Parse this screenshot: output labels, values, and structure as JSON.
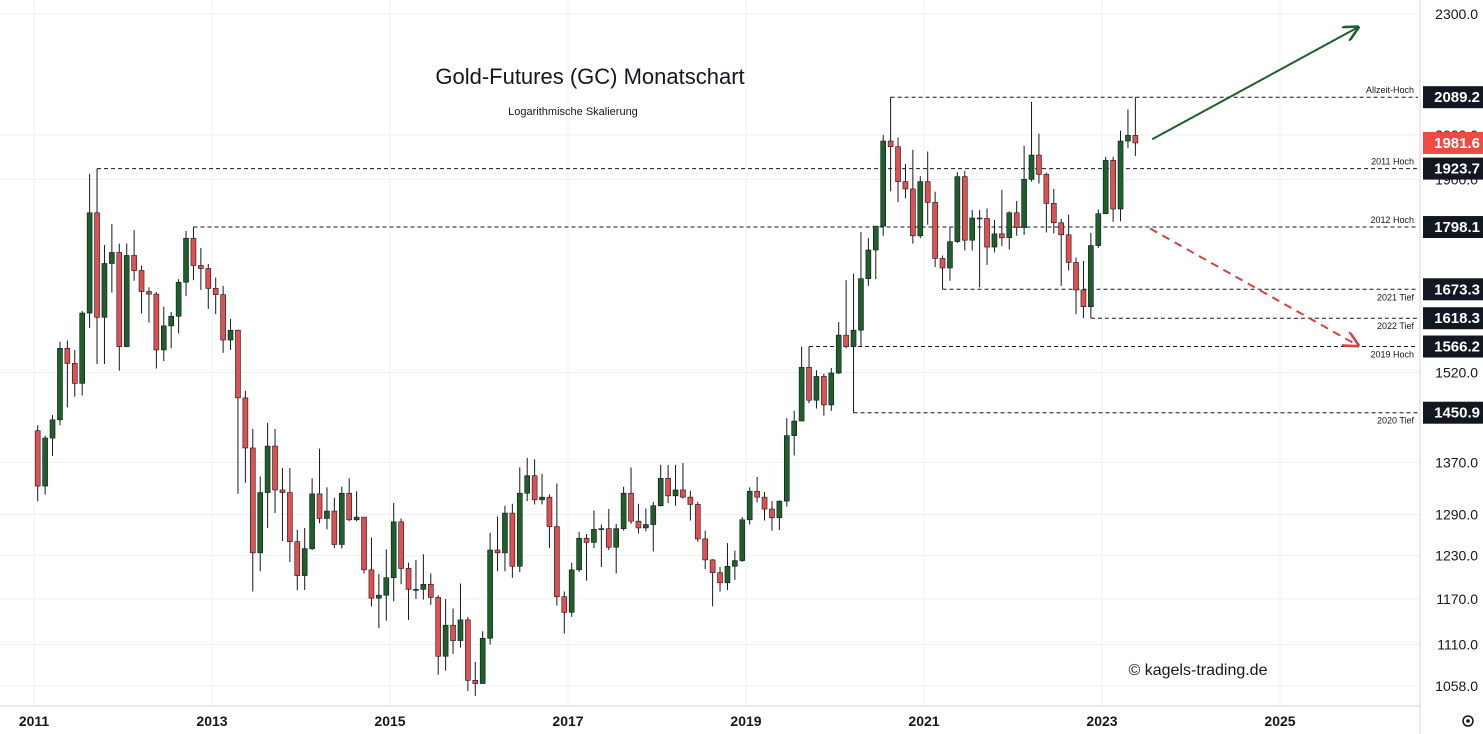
{
  "chart_data": {
    "type": "candlestick",
    "title": "Gold-Futures (GC) Monatschart",
    "subtitle": "Logarithmische Skalierung",
    "y_scale": "log",
    "ylim": [
      1015,
      2370
    ],
    "grid": true,
    "y_ticks": [
      "2300.0",
      "2000.0",
      "1900.0",
      "1520.0",
      "1370.0",
      "1290.0",
      "1230.0",
      "1170.0",
      "1110.0",
      "1058.0"
    ],
    "x_ticks": [
      "2011",
      "2013",
      "2015",
      "2017",
      "2019",
      "2021",
      "2023",
      "2025"
    ],
    "levels": [
      {
        "value": 2089.2,
        "label": "Allzeit-Hoch",
        "start": "2020-08"
      },
      {
        "value": 1923.7,
        "label": "2011 Hoch",
        "start": "2011-09"
      },
      {
        "value": 1798.1,
        "label": "2012 Hoch",
        "start": "2012-10"
      },
      {
        "value": 1673.3,
        "label": "2021 Tief",
        "start": "2021-03"
      },
      {
        "value": 1618.3,
        "label": "2022 Tief",
        "start": "2022-11"
      },
      {
        "value": 1566.2,
        "label": "2019 Hoch",
        "start": "2019-09"
      },
      {
        "value": 1450.9,
        "label": "2020 Tief",
        "start": "2020-03"
      }
    ],
    "current_price": "1981.6",
    "colors": {
      "up": "#1e5f2a",
      "down": "#e05050",
      "current": "#f04a45",
      "arrow_up": "#1e5f2a",
      "arrow_down": "#d94040"
    },
    "candles": [
      {
        "date": "2011-01",
        "o": 1421,
        "h": 1430,
        "l": 1310,
        "c": 1333
      },
      {
        "date": "2011-02",
        "o": 1333,
        "h": 1413,
        "l": 1320,
        "c": 1409
      },
      {
        "date": "2011-03",
        "o": 1409,
        "h": 1447,
        "l": 1380,
        "c": 1439
      },
      {
        "date": "2011-04",
        "o": 1439,
        "h": 1575,
        "l": 1430,
        "c": 1563
      },
      {
        "date": "2011-05",
        "o": 1563,
        "h": 1577,
        "l": 1460,
        "c": 1536
      },
      {
        "date": "2011-06",
        "o": 1536,
        "h": 1560,
        "l": 1478,
        "c": 1501
      },
      {
        "date": "2011-07",
        "o": 1501,
        "h": 1632,
        "l": 1480,
        "c": 1628
      },
      {
        "date": "2011-08",
        "o": 1628,
        "h": 1912,
        "l": 1600,
        "c": 1828
      },
      {
        "date": "2011-09",
        "o": 1828,
        "h": 1923.7,
        "l": 1535,
        "c": 1620
      },
      {
        "date": "2011-10",
        "o": 1620,
        "h": 1761,
        "l": 1535,
        "c": 1724
      },
      {
        "date": "2011-11",
        "o": 1724,
        "h": 1804,
        "l": 1667,
        "c": 1746
      },
      {
        "date": "2011-12",
        "o": 1746,
        "h": 1764,
        "l": 1523,
        "c": 1566
      },
      {
        "date": "2012-01",
        "o": 1566,
        "h": 1764,
        "l": 1565,
        "c": 1740
      },
      {
        "date": "2012-02",
        "o": 1740,
        "h": 1792,
        "l": 1690,
        "c": 1710
      },
      {
        "date": "2012-03",
        "o": 1710,
        "h": 1720,
        "l": 1627,
        "c": 1669
      },
      {
        "date": "2012-04",
        "o": 1669,
        "h": 1677,
        "l": 1610,
        "c": 1664
      },
      {
        "date": "2012-05",
        "o": 1664,
        "h": 1668,
        "l": 1527,
        "c": 1560
      },
      {
        "date": "2012-06",
        "o": 1560,
        "h": 1640,
        "l": 1540,
        "c": 1604
      },
      {
        "date": "2012-07",
        "o": 1604,
        "h": 1630,
        "l": 1563,
        "c": 1622
      },
      {
        "date": "2012-08",
        "o": 1622,
        "h": 1693,
        "l": 1590,
        "c": 1687
      },
      {
        "date": "2012-09",
        "o": 1687,
        "h": 1790,
        "l": 1660,
        "c": 1775
      },
      {
        "date": "2012-10",
        "o": 1775,
        "h": 1798.1,
        "l": 1691,
        "c": 1720
      },
      {
        "date": "2012-11",
        "o": 1720,
        "h": 1755,
        "l": 1672,
        "c": 1714
      },
      {
        "date": "2012-12",
        "o": 1714,
        "h": 1723,
        "l": 1636,
        "c": 1675
      },
      {
        "date": "2013-01",
        "o": 1675,
        "h": 1696,
        "l": 1626,
        "c": 1663
      },
      {
        "date": "2013-02",
        "o": 1663,
        "h": 1680,
        "l": 1555,
        "c": 1578
      },
      {
        "date": "2013-03",
        "o": 1578,
        "h": 1617,
        "l": 1560,
        "c": 1596
      },
      {
        "date": "2013-04",
        "o": 1596,
        "h": 1597,
        "l": 1321,
        "c": 1476
      },
      {
        "date": "2013-05",
        "o": 1476,
        "h": 1488,
        "l": 1338,
        "c": 1393
      },
      {
        "date": "2013-06",
        "o": 1393,
        "h": 1424,
        "l": 1180,
        "c": 1234
      },
      {
        "date": "2013-07",
        "o": 1234,
        "h": 1348,
        "l": 1208,
        "c": 1323
      },
      {
        "date": "2013-08",
        "o": 1323,
        "h": 1434,
        "l": 1270,
        "c": 1396
      },
      {
        "date": "2013-09",
        "o": 1396,
        "h": 1424,
        "l": 1292,
        "c": 1327
      },
      {
        "date": "2013-10",
        "o": 1327,
        "h": 1361,
        "l": 1251,
        "c": 1323
      },
      {
        "date": "2013-11",
        "o": 1323,
        "h": 1361,
        "l": 1221,
        "c": 1250
      },
      {
        "date": "2013-12",
        "o": 1250,
        "h": 1267,
        "l": 1182,
        "c": 1202
      },
      {
        "date": "2014-01",
        "o": 1202,
        "h": 1270,
        "l": 1182,
        "c": 1240
      },
      {
        "date": "2014-02",
        "o": 1240,
        "h": 1345,
        "l": 1238,
        "c": 1321
      },
      {
        "date": "2014-03",
        "o": 1321,
        "h": 1392,
        "l": 1277,
        "c": 1284
      },
      {
        "date": "2014-04",
        "o": 1284,
        "h": 1331,
        "l": 1268,
        "c": 1295
      },
      {
        "date": "2014-05",
        "o": 1295,
        "h": 1315,
        "l": 1241,
        "c": 1246
      },
      {
        "date": "2014-06",
        "o": 1246,
        "h": 1332,
        "l": 1240,
        "c": 1322
      },
      {
        "date": "2014-07",
        "o": 1322,
        "h": 1345,
        "l": 1280,
        "c": 1282
      },
      {
        "date": "2014-08",
        "o": 1282,
        "h": 1325,
        "l": 1280,
        "c": 1286
      },
      {
        "date": "2014-09",
        "o": 1286,
        "h": 1286,
        "l": 1205,
        "c": 1210
      },
      {
        "date": "2014-10",
        "o": 1210,
        "h": 1256,
        "l": 1160,
        "c": 1171
      },
      {
        "date": "2014-11",
        "o": 1171,
        "h": 1204,
        "l": 1131,
        "c": 1175
      },
      {
        "date": "2014-12",
        "o": 1175,
        "h": 1239,
        "l": 1141,
        "c": 1199
      },
      {
        "date": "2015-01",
        "o": 1199,
        "h": 1307,
        "l": 1167,
        "c": 1279
      },
      {
        "date": "2015-02",
        "o": 1279,
        "h": 1284,
        "l": 1190,
        "c": 1212
      },
      {
        "date": "2015-03",
        "o": 1212,
        "h": 1220,
        "l": 1142,
        "c": 1183
      },
      {
        "date": "2015-04",
        "o": 1183,
        "h": 1224,
        "l": 1170,
        "c": 1183
      },
      {
        "date": "2015-05",
        "o": 1183,
        "h": 1232,
        "l": 1169,
        "c": 1190
      },
      {
        "date": "2015-06",
        "o": 1190,
        "h": 1205,
        "l": 1162,
        "c": 1172
      },
      {
        "date": "2015-07",
        "o": 1172,
        "h": 1175,
        "l": 1072,
        "c": 1095
      },
      {
        "date": "2015-08",
        "o": 1095,
        "h": 1170,
        "l": 1077,
        "c": 1135
      },
      {
        "date": "2015-09",
        "o": 1135,
        "h": 1157,
        "l": 1098,
        "c": 1115
      },
      {
        "date": "2015-10",
        "o": 1115,
        "h": 1191,
        "l": 1106,
        "c": 1142
      },
      {
        "date": "2015-11",
        "o": 1142,
        "h": 1146,
        "l": 1052,
        "c": 1065
      },
      {
        "date": "2015-12",
        "o": 1065,
        "h": 1088,
        "l": 1046,
        "c": 1061
      },
      {
        "date": "2016-01",
        "o": 1061,
        "h": 1127,
        "l": 1061,
        "c": 1118
      },
      {
        "date": "2016-02",
        "o": 1118,
        "h": 1263,
        "l": 1110,
        "c": 1238
      },
      {
        "date": "2016-03",
        "o": 1238,
        "h": 1287,
        "l": 1208,
        "c": 1234
      },
      {
        "date": "2016-04",
        "o": 1234,
        "h": 1303,
        "l": 1208,
        "c": 1292
      },
      {
        "date": "2016-05",
        "o": 1292,
        "h": 1306,
        "l": 1199,
        "c": 1215
      },
      {
        "date": "2016-06",
        "o": 1215,
        "h": 1362,
        "l": 1207,
        "c": 1322
      },
      {
        "date": "2016-07",
        "o": 1322,
        "h": 1377,
        "l": 1310,
        "c": 1349
      },
      {
        "date": "2016-08",
        "o": 1349,
        "h": 1375,
        "l": 1305,
        "c": 1312
      },
      {
        "date": "2016-09",
        "o": 1312,
        "h": 1352,
        "l": 1305,
        "c": 1316
      },
      {
        "date": "2016-10",
        "o": 1316,
        "h": 1320,
        "l": 1241,
        "c": 1272
      },
      {
        "date": "2016-11",
        "o": 1272,
        "h": 1337,
        "l": 1161,
        "c": 1173
      },
      {
        "date": "2016-12",
        "o": 1173,
        "h": 1180,
        "l": 1124,
        "c": 1152
      },
      {
        "date": "2017-01",
        "o": 1152,
        "h": 1220,
        "l": 1146,
        "c": 1210
      },
      {
        "date": "2017-02",
        "o": 1210,
        "h": 1264,
        "l": 1207,
        "c": 1255
      },
      {
        "date": "2017-03",
        "o": 1255,
        "h": 1261,
        "l": 1195,
        "c": 1249
      },
      {
        "date": "2017-04",
        "o": 1249,
        "h": 1296,
        "l": 1241,
        "c": 1268
      },
      {
        "date": "2017-05",
        "o": 1268,
        "h": 1275,
        "l": 1214,
        "c": 1269
      },
      {
        "date": "2017-06",
        "o": 1269,
        "h": 1298,
        "l": 1238,
        "c": 1242
      },
      {
        "date": "2017-07",
        "o": 1242,
        "h": 1276,
        "l": 1205,
        "c": 1269
      },
      {
        "date": "2017-08",
        "o": 1269,
        "h": 1332,
        "l": 1266,
        "c": 1322
      },
      {
        "date": "2017-09",
        "o": 1322,
        "h": 1362,
        "l": 1276,
        "c": 1280
      },
      {
        "date": "2017-10",
        "o": 1280,
        "h": 1306,
        "l": 1262,
        "c": 1270
      },
      {
        "date": "2017-11",
        "o": 1270,
        "h": 1299,
        "l": 1265,
        "c": 1275
      },
      {
        "date": "2017-12",
        "o": 1275,
        "h": 1309,
        "l": 1236,
        "c": 1303
      },
      {
        "date": "2018-01",
        "o": 1303,
        "h": 1366,
        "l": 1302,
        "c": 1345
      },
      {
        "date": "2018-02",
        "o": 1345,
        "h": 1366,
        "l": 1307,
        "c": 1318
      },
      {
        "date": "2018-03",
        "o": 1318,
        "h": 1366,
        "l": 1303,
        "c": 1327
      },
      {
        "date": "2018-04",
        "o": 1327,
        "h": 1369,
        "l": 1314,
        "c": 1316
      },
      {
        "date": "2018-05",
        "o": 1316,
        "h": 1326,
        "l": 1281,
        "c": 1305
      },
      {
        "date": "2018-06",
        "o": 1305,
        "h": 1309,
        "l": 1250,
        "c": 1254
      },
      {
        "date": "2018-07",
        "o": 1254,
        "h": 1266,
        "l": 1211,
        "c": 1224
      },
      {
        "date": "2018-08",
        "o": 1224,
        "h": 1225,
        "l": 1160,
        "c": 1206
      },
      {
        "date": "2018-09",
        "o": 1206,
        "h": 1214,
        "l": 1180,
        "c": 1192
      },
      {
        "date": "2018-10",
        "o": 1192,
        "h": 1248,
        "l": 1182,
        "c": 1215
      },
      {
        "date": "2018-11",
        "o": 1215,
        "h": 1237,
        "l": 1196,
        "c": 1223
      },
      {
        "date": "2018-12",
        "o": 1223,
        "h": 1286,
        "l": 1221,
        "c": 1282
      },
      {
        "date": "2019-01",
        "o": 1282,
        "h": 1331,
        "l": 1275,
        "c": 1325
      },
      {
        "date": "2019-02",
        "o": 1325,
        "h": 1347,
        "l": 1308,
        "c": 1316
      },
      {
        "date": "2019-03",
        "o": 1316,
        "h": 1324,
        "l": 1281,
        "c": 1298
      },
      {
        "date": "2019-04",
        "o": 1298,
        "h": 1310,
        "l": 1266,
        "c": 1285
      },
      {
        "date": "2019-05",
        "o": 1285,
        "h": 1311,
        "l": 1267,
        "c": 1310
      },
      {
        "date": "2019-06",
        "o": 1310,
        "h": 1442,
        "l": 1302,
        "c": 1413
      },
      {
        "date": "2019-07",
        "o": 1413,
        "h": 1454,
        "l": 1381,
        "c": 1437
      },
      {
        "date": "2019-08",
        "o": 1437,
        "h": 1566.2,
        "l": 1437,
        "c": 1529
      },
      {
        "date": "2019-09",
        "o": 1529,
        "h": 1566.2,
        "l": 1467,
        "c": 1472
      },
      {
        "date": "2019-10",
        "o": 1472,
        "h": 1524,
        "l": 1458,
        "c": 1513
      },
      {
        "date": "2019-11",
        "o": 1513,
        "h": 1518,
        "l": 1446,
        "c": 1464
      },
      {
        "date": "2019-12",
        "o": 1464,
        "h": 1528,
        "l": 1454,
        "c": 1519
      },
      {
        "date": "2020-01",
        "o": 1519,
        "h": 1611,
        "l": 1517,
        "c": 1587
      },
      {
        "date": "2020-02",
        "o": 1587,
        "h": 1691,
        "l": 1563,
        "c": 1566
      },
      {
        "date": "2020-03",
        "o": 1566,
        "h": 1704,
        "l": 1450.9,
        "c": 1596
      },
      {
        "date": "2020-04",
        "o": 1596,
        "h": 1788,
        "l": 1567,
        "c": 1694
      },
      {
        "date": "2020-05",
        "o": 1694,
        "h": 1775,
        "l": 1680,
        "c": 1751
      },
      {
        "date": "2020-06",
        "o": 1751,
        "h": 1800,
        "l": 1693,
        "c": 1800
      },
      {
        "date": "2020-07",
        "o": 1800,
        "h": 2000,
        "l": 1780,
        "c": 1986
      },
      {
        "date": "2020-08",
        "o": 1986,
        "h": 2089.2,
        "l": 1874,
        "c": 1973
      },
      {
        "date": "2020-09",
        "o": 1973,
        "h": 1994,
        "l": 1851,
        "c": 1895
      },
      {
        "date": "2020-10",
        "o": 1895,
        "h": 1934,
        "l": 1859,
        "c": 1879
      },
      {
        "date": "2020-11",
        "o": 1879,
        "h": 1966,
        "l": 1764,
        "c": 1780
      },
      {
        "date": "2020-12",
        "o": 1780,
        "h": 1907,
        "l": 1775,
        "c": 1895
      },
      {
        "date": "2021-01",
        "o": 1895,
        "h": 1962,
        "l": 1803,
        "c": 1850
      },
      {
        "date": "2021-02",
        "o": 1850,
        "h": 1873,
        "l": 1717,
        "c": 1734
      },
      {
        "date": "2021-03",
        "o": 1734,
        "h": 1740,
        "l": 1673.3,
        "c": 1715
      },
      {
        "date": "2021-04",
        "o": 1715,
        "h": 1798,
        "l": 1690,
        "c": 1768
      },
      {
        "date": "2021-05",
        "o": 1768,
        "h": 1916,
        "l": 1765,
        "c": 1906
      },
      {
        "date": "2021-06",
        "o": 1906,
        "h": 1919,
        "l": 1750,
        "c": 1771
      },
      {
        "date": "2021-07",
        "o": 1771,
        "h": 1834,
        "l": 1750,
        "c": 1817
      },
      {
        "date": "2021-08",
        "o": 1817,
        "h": 1834,
        "l": 1677,
        "c": 1816
      },
      {
        "date": "2021-09",
        "o": 1816,
        "h": 1837,
        "l": 1721,
        "c": 1757
      },
      {
        "date": "2021-10",
        "o": 1757,
        "h": 1813,
        "l": 1746,
        "c": 1784
      },
      {
        "date": "2021-11",
        "o": 1784,
        "h": 1877,
        "l": 1759,
        "c": 1776
      },
      {
        "date": "2021-12",
        "o": 1776,
        "h": 1831,
        "l": 1752,
        "c": 1828
      },
      {
        "date": "2022-01",
        "o": 1828,
        "h": 1853,
        "l": 1780,
        "c": 1797
      },
      {
        "date": "2022-02",
        "o": 1797,
        "h": 1975,
        "l": 1782,
        "c": 1900
      },
      {
        "date": "2022-03",
        "o": 1900,
        "h": 2078,
        "l": 1895,
        "c": 1954
      },
      {
        "date": "2022-04",
        "o": 1954,
        "h": 2003,
        "l": 1891,
        "c": 1911
      },
      {
        "date": "2022-05",
        "o": 1911,
        "h": 1915,
        "l": 1787,
        "c": 1848
      },
      {
        "date": "2022-06",
        "o": 1848,
        "h": 1879,
        "l": 1785,
        "c": 1807
      },
      {
        "date": "2022-07",
        "o": 1807,
        "h": 1815,
        "l": 1680,
        "c": 1782
      },
      {
        "date": "2022-08",
        "o": 1782,
        "h": 1824,
        "l": 1710,
        "c": 1726
      },
      {
        "date": "2022-09",
        "o": 1726,
        "h": 1736,
        "l": 1626,
        "c": 1672
      },
      {
        "date": "2022-10",
        "o": 1672,
        "h": 1729,
        "l": 1618.3,
        "c": 1640
      },
      {
        "date": "2022-11",
        "o": 1640,
        "h": 1786,
        "l": 1618.3,
        "c": 1760
      },
      {
        "date": "2022-12",
        "o": 1760,
        "h": 1835,
        "l": 1755,
        "c": 1826
      },
      {
        "date": "2023-01",
        "o": 1826,
        "h": 1950,
        "l": 1825,
        "c": 1942
      },
      {
        "date": "2023-02",
        "o": 1942,
        "h": 1950,
        "l": 1809,
        "c": 1836
      },
      {
        "date": "2023-03",
        "o": 1836,
        "h": 2010,
        "l": 1810,
        "c": 1986
      },
      {
        "date": "2023-04",
        "o": 1986,
        "h": 2060,
        "l": 1970,
        "c": 1999
      },
      {
        "date": "2023-05",
        "o": 1999,
        "h": 2089.2,
        "l": 1952,
        "c": 1981.6
      }
    ]
  },
  "copyright": "© kagels-trading.de",
  "settings_icon": "gear-icon"
}
